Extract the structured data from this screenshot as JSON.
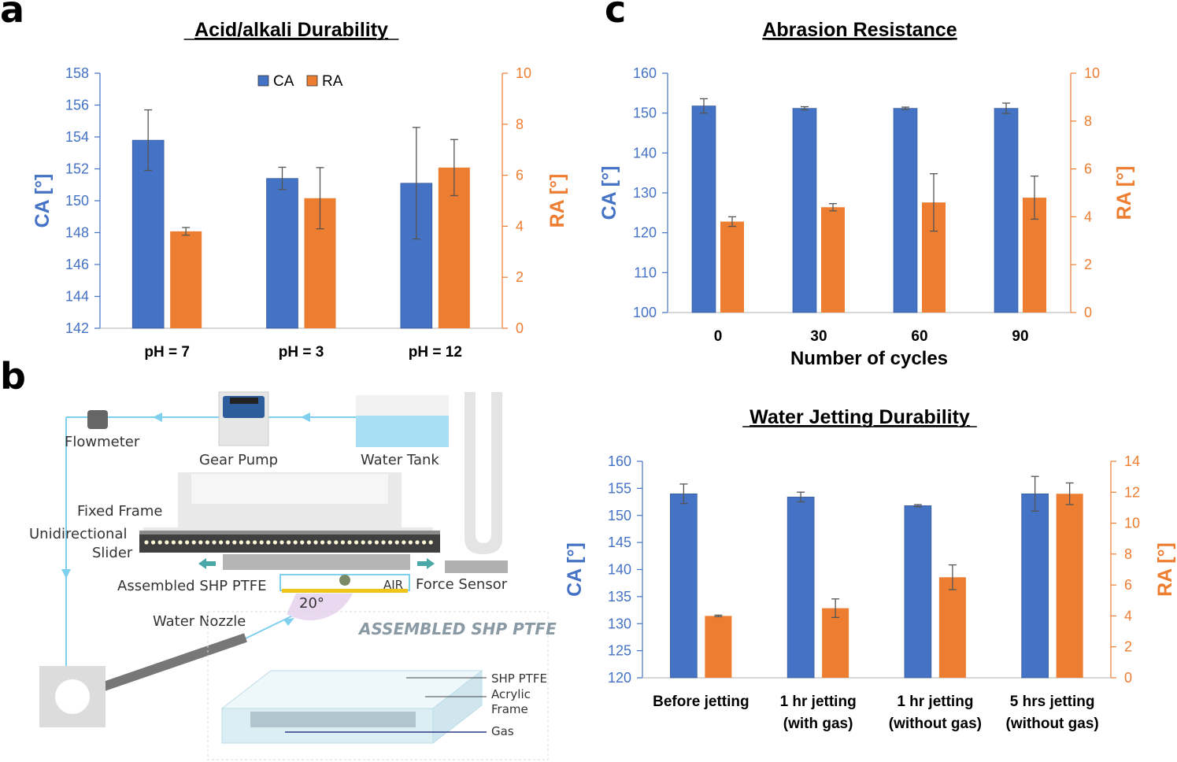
{
  "panels": {
    "a": "a",
    "b": "b",
    "c": "c"
  },
  "colors": {
    "ca": "#4472c4",
    "ra": "#ed7d31",
    "water": "#a8dff5",
    "line": "#7fd0ee"
  },
  "chart_data": [
    {
      "id": "a",
      "type": "bar",
      "title": "Acid/alkali Durability",
      "categories": [
        "pH = 7",
        "pH = 3",
        "pH = 12"
      ],
      "xlabel": "",
      "ylabel": "CA [°]",
      "y2label": "RA [°]",
      "ylim": [
        142,
        158
      ],
      "yticks": [
        142,
        144,
        146,
        148,
        150,
        152,
        154,
        156,
        158
      ],
      "y2lim": [
        0,
        10
      ],
      "y2ticks": [
        0,
        2,
        4,
        6,
        8,
        10
      ],
      "legend": [
        "CA",
        "RA"
      ],
      "series": [
        {
          "name": "CA",
          "axis": "left",
          "values": [
            153.8,
            151.4,
            151.1
          ],
          "errors": [
            1.9,
            0.7,
            3.5
          ]
        },
        {
          "name": "RA",
          "axis": "right",
          "values": [
            3.8,
            5.1,
            6.3
          ],
          "errors": [
            0.15,
            1.2,
            1.1
          ]
        }
      ]
    },
    {
      "id": "c1",
      "type": "bar",
      "title": "Abrasion Resistance",
      "categories": [
        "0",
        "30",
        "60",
        "90"
      ],
      "xlabel": "Number of cycles",
      "ylabel": "CA [°]",
      "y2label": "RA [°]",
      "ylim": [
        100,
        160
      ],
      "yticks": [
        100,
        110,
        120,
        130,
        140,
        150,
        160
      ],
      "y2lim": [
        0,
        10
      ],
      "y2ticks": [
        0,
        2,
        4,
        6,
        8,
        10
      ],
      "series": [
        {
          "name": "CA",
          "axis": "left",
          "values": [
            151.8,
            151.2,
            151.2,
            151.2
          ],
          "errors": [
            1.8,
            0.4,
            0.3,
            1.3
          ]
        },
        {
          "name": "RA",
          "axis": "right",
          "values": [
            3.8,
            4.4,
            4.6,
            4.8
          ],
          "errors": [
            0.2,
            0.15,
            1.2,
            0.9
          ]
        }
      ]
    },
    {
      "id": "c2",
      "type": "bar",
      "title": "Water Jetting Durability",
      "categories": [
        [
          "Before jetting"
        ],
        [
          "1 hr jetting",
          "(with gas)"
        ],
        [
          "1 hr jetting",
          "(without gas)"
        ],
        [
          "5 hrs jetting",
          "(without gas)"
        ]
      ],
      "xlabel": "",
      "ylabel": "CA [°]",
      "y2label": "RA [°]",
      "ylim": [
        120,
        160
      ],
      "yticks": [
        120,
        125,
        130,
        135,
        140,
        145,
        150,
        155,
        160
      ],
      "y2lim": [
        0,
        14
      ],
      "y2ticks": [
        0,
        2,
        4,
        6,
        8,
        10,
        12,
        14
      ],
      "series": [
        {
          "name": "CA",
          "axis": "left",
          "values": [
            154.0,
            153.4,
            151.8,
            154.0
          ],
          "errors": [
            1.8,
            0.9,
            0.2,
            3.2
          ]
        },
        {
          "name": "RA",
          "axis": "right",
          "values": [
            4.0,
            4.5,
            6.5,
            11.9
          ],
          "errors": [
            0.05,
            0.6,
            0.8,
            0.7
          ]
        }
      ]
    }
  ],
  "diagram": {
    "flowmeter": "Flowmeter",
    "gear_pump": "Gear Pump",
    "water_tank": "Water Tank",
    "fixed_frame": "Fixed Frame",
    "slider_line1": "Unidirectional",
    "slider_line2": "Slider",
    "assembled": "Assembled SHP PTFE",
    "air": "AIR",
    "force_sensor": "Force Sensor",
    "angle": "20°",
    "nozzle": "Water Nozzle",
    "inset_title": "ASSEMBLED SHP PTFE",
    "inset_shp": "SHP PTFE",
    "inset_acrylic1": "Acrylic",
    "inset_acrylic2": "Frame",
    "inset_gas": "Gas"
  }
}
